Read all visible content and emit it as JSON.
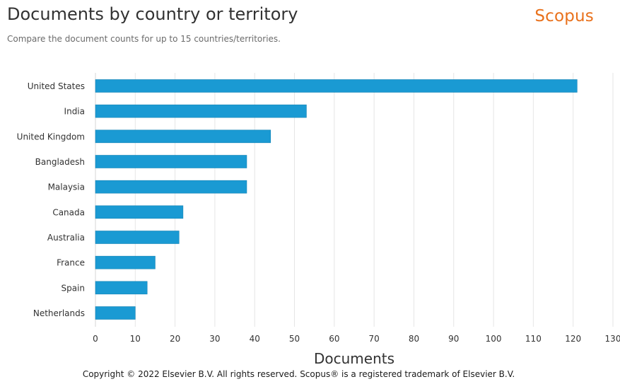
{
  "header": {
    "title": "Documents by country or territory",
    "subtitle": "Compare the document counts for up to 15 countries/territories.",
    "brand": "Scopus"
  },
  "footer": {
    "copyright": "Copyright © 2022 Elsevier B.V. All rights reserved. Scopus® is a registered trademark of Elsevier B.V."
  },
  "colors": {
    "bar": "#1a9ad3",
    "bar_outline": "#1582b4",
    "grid": "#e6e6e6",
    "axis_text": "#323232",
    "brand": "#e9711c"
  },
  "chart_data": {
    "type": "bar",
    "orientation": "horizontal",
    "title": "Documents by country or territory",
    "subtitle": "Compare the document counts for up to 15 countries/territories.",
    "xlabel": "Documents",
    "ylabel": "",
    "categories": [
      "United States",
      "India",
      "United Kingdom",
      "Bangladesh",
      "Malaysia",
      "Canada",
      "Australia",
      "France",
      "Spain",
      "Netherlands"
    ],
    "values": [
      121,
      53,
      44,
      38,
      38,
      22,
      21,
      15,
      13,
      10
    ],
    "xlim": [
      0,
      130
    ],
    "xticks": [
      0,
      10,
      20,
      30,
      40,
      50,
      60,
      70,
      80,
      90,
      100,
      110,
      120,
      130
    ],
    "grid": true,
    "legend": "none"
  }
}
